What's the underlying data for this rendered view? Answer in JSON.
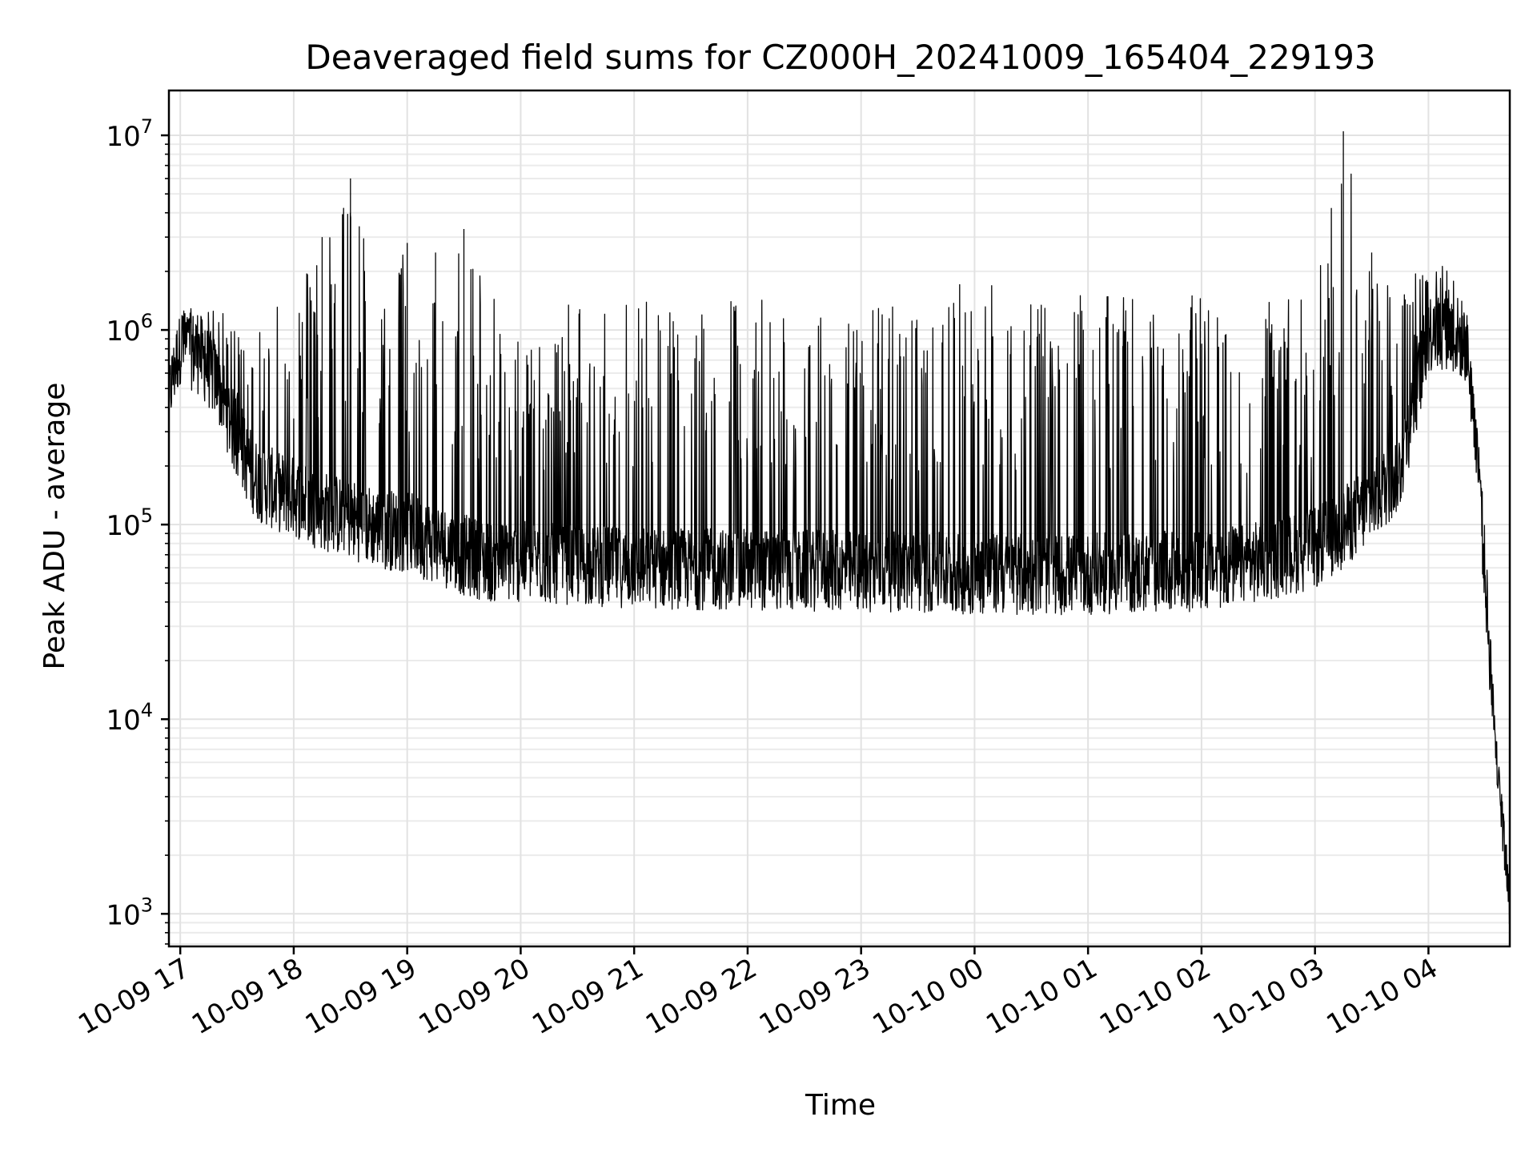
{
  "chart_data": {
    "type": "line",
    "title": "Deaveraged field sums for CZ000H_20241009_165404_229193",
    "xlabel": "Time",
    "ylabel": "Peak ADU - average",
    "y_scale": "log",
    "ylim": [
      680,
      17000000
    ],
    "xlim": [
      "2024-10-09 16:54",
      "2024-10-10 04:43"
    ],
    "grid": "major and minor",
    "x_ticks": [
      {
        "time": "2024-10-09 17:00",
        "label": "10-09 17"
      },
      {
        "time": "2024-10-09 18:00",
        "label": "10-09 18"
      },
      {
        "time": "2024-10-09 19:00",
        "label": "10-09 19"
      },
      {
        "time": "2024-10-09 20:00",
        "label": "10-09 20"
      },
      {
        "time": "2024-10-09 21:00",
        "label": "10-09 21"
      },
      {
        "time": "2024-10-09 22:00",
        "label": "10-09 22"
      },
      {
        "time": "2024-10-09 23:00",
        "label": "10-09 23"
      },
      {
        "time": "2024-10-10 00:00",
        "label": "10-10 00"
      },
      {
        "time": "2024-10-10 01:00",
        "label": "10-10 01"
      },
      {
        "time": "2024-10-10 02:00",
        "label": "10-10 02"
      },
      {
        "time": "2024-10-10 03:00",
        "label": "10-10 03"
      },
      {
        "time": "2024-10-10 04:00",
        "label": "10-10 04"
      }
    ],
    "y_ticks": [
      {
        "value": 1000,
        "base": "10",
        "exp": "3"
      },
      {
        "value": 10000,
        "base": "10",
        "exp": "4"
      },
      {
        "value": 100000,
        "base": "10",
        "exp": "5"
      },
      {
        "value": 1000000,
        "base": "10",
        "exp": "6"
      },
      {
        "value": 10000000,
        "base": "10",
        "exp": "7"
      }
    ],
    "series": [
      {
        "color": "#000000",
        "x": [
          "2024-10-09 16:54",
          "2024-10-09 17:00",
          "2024-10-09 17:10",
          "2024-10-09 17:20",
          "2024-10-09 17:30",
          "2024-10-09 17:40",
          "2024-10-09 17:50",
          "2024-10-09 18:00",
          "2024-10-09 18:15",
          "2024-10-09 18:30",
          "2024-10-09 18:45",
          "2024-10-09 19:00",
          "2024-10-09 19:15",
          "2024-10-09 19:30",
          "2024-10-09 19:45",
          "2024-10-09 20:00",
          "2024-10-09 20:30",
          "2024-10-09 21:00",
          "2024-10-09 21:30",
          "2024-10-09 22:00",
          "2024-10-09 22:30",
          "2024-10-09 23:00",
          "2024-10-09 23:30",
          "2024-10-10 00:00",
          "2024-10-10 00:30",
          "2024-10-10 01:00",
          "2024-10-10 01:30",
          "2024-10-10 02:00",
          "2024-10-10 02:30",
          "2024-10-10 03:00",
          "2024-10-10 03:15",
          "2024-10-10 03:30",
          "2024-10-10 03:45",
          "2024-10-10 04:00",
          "2024-10-10 04:10",
          "2024-10-10 04:20",
          "2024-10-10 04:25",
          "2024-10-10 04:30",
          "2024-10-10 04:35",
          "2024-10-10 04:40",
          "2024-10-10 04:43"
        ],
        "baseline": [
          450000,
          800000,
          700000,
          500000,
          250000,
          160000,
          140000,
          130000,
          110000,
          100000,
          90000,
          85000,
          75000,
          65000,
          60000,
          60000,
          58000,
          56000,
          55000,
          55000,
          54000,
          54000,
          53000,
          52000,
          52000,
          52000,
          53000,
          54000,
          60000,
          70000,
          90000,
          120000,
          180000,
          900000,
          950000,
          800000,
          300000,
          50000,
          8000,
          2500,
          1200
        ],
        "peak": [
          600000,
          1200000,
          1500000,
          1300000,
          1000000,
          1200000,
          2200000,
          1500000,
          3000000,
          6000000,
          1500000,
          2800000,
          2500000,
          3300000,
          1500000,
          900000,
          1500000,
          1500000,
          1500000,
          1500000,
          1500000,
          1400000,
          1500000,
          2000000,
          1500000,
          1500000,
          1500000,
          1500000,
          1500000,
          1500000,
          10500000,
          2500000,
          2000000,
          2000000,
          2300000,
          1300000,
          350000,
          150000,
          10000,
          3000,
          1500
        ]
      }
    ]
  }
}
